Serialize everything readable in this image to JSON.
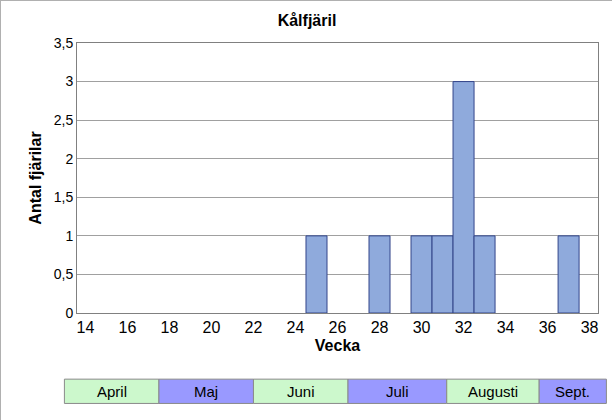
{
  "chart_data": {
    "type": "bar",
    "title": "Kålfjäril",
    "x_label": "Vecka",
    "y_label": "Antal fjärilar",
    "x": [
      25,
      28,
      30,
      31,
      32,
      33,
      37
    ],
    "values": [
      1,
      1,
      1,
      1,
      3,
      1,
      1
    ],
    "color": "#8faadc",
    "xlim": [
      13.6,
      38.4
    ],
    "xticks": [
      14,
      16,
      18,
      20,
      22,
      24,
      26,
      28,
      30,
      32,
      34,
      36,
      38
    ],
    "ylim": [
      0,
      3.5
    ],
    "yticks": [
      0,
      {
        "value": 0.5,
        "label": "0,5"
      },
      1,
      {
        "value": 1.5,
        "label": "1,5"
      },
      2,
      {
        "value": 2.5,
        "label": "2,5"
      },
      3,
      {
        "value": 3.5,
        "label": "3,5"
      }
    ],
    "grid": true,
    "months": [
      {
        "label": "April",
        "from": 13.0,
        "to": 17.5,
        "color": "#ccf8cc"
      },
      {
        "label": "Maj",
        "from": 17.5,
        "to": 22.0,
        "color": "#9999ff"
      },
      {
        "label": "Juni",
        "from": 22.0,
        "to": 26.5,
        "color": "#ccf8cc"
      },
      {
        "label": "Juli",
        "from": 26.5,
        "to": 31.2,
        "color": "#9999ff"
      },
      {
        "label": "Augusti",
        "from": 31.2,
        "to": 35.6,
        "color": "#ccf8cc"
      },
      {
        "label": "Sept.",
        "from": 35.6,
        "to": 38.8,
        "color": "#9999ff"
      }
    ]
  }
}
